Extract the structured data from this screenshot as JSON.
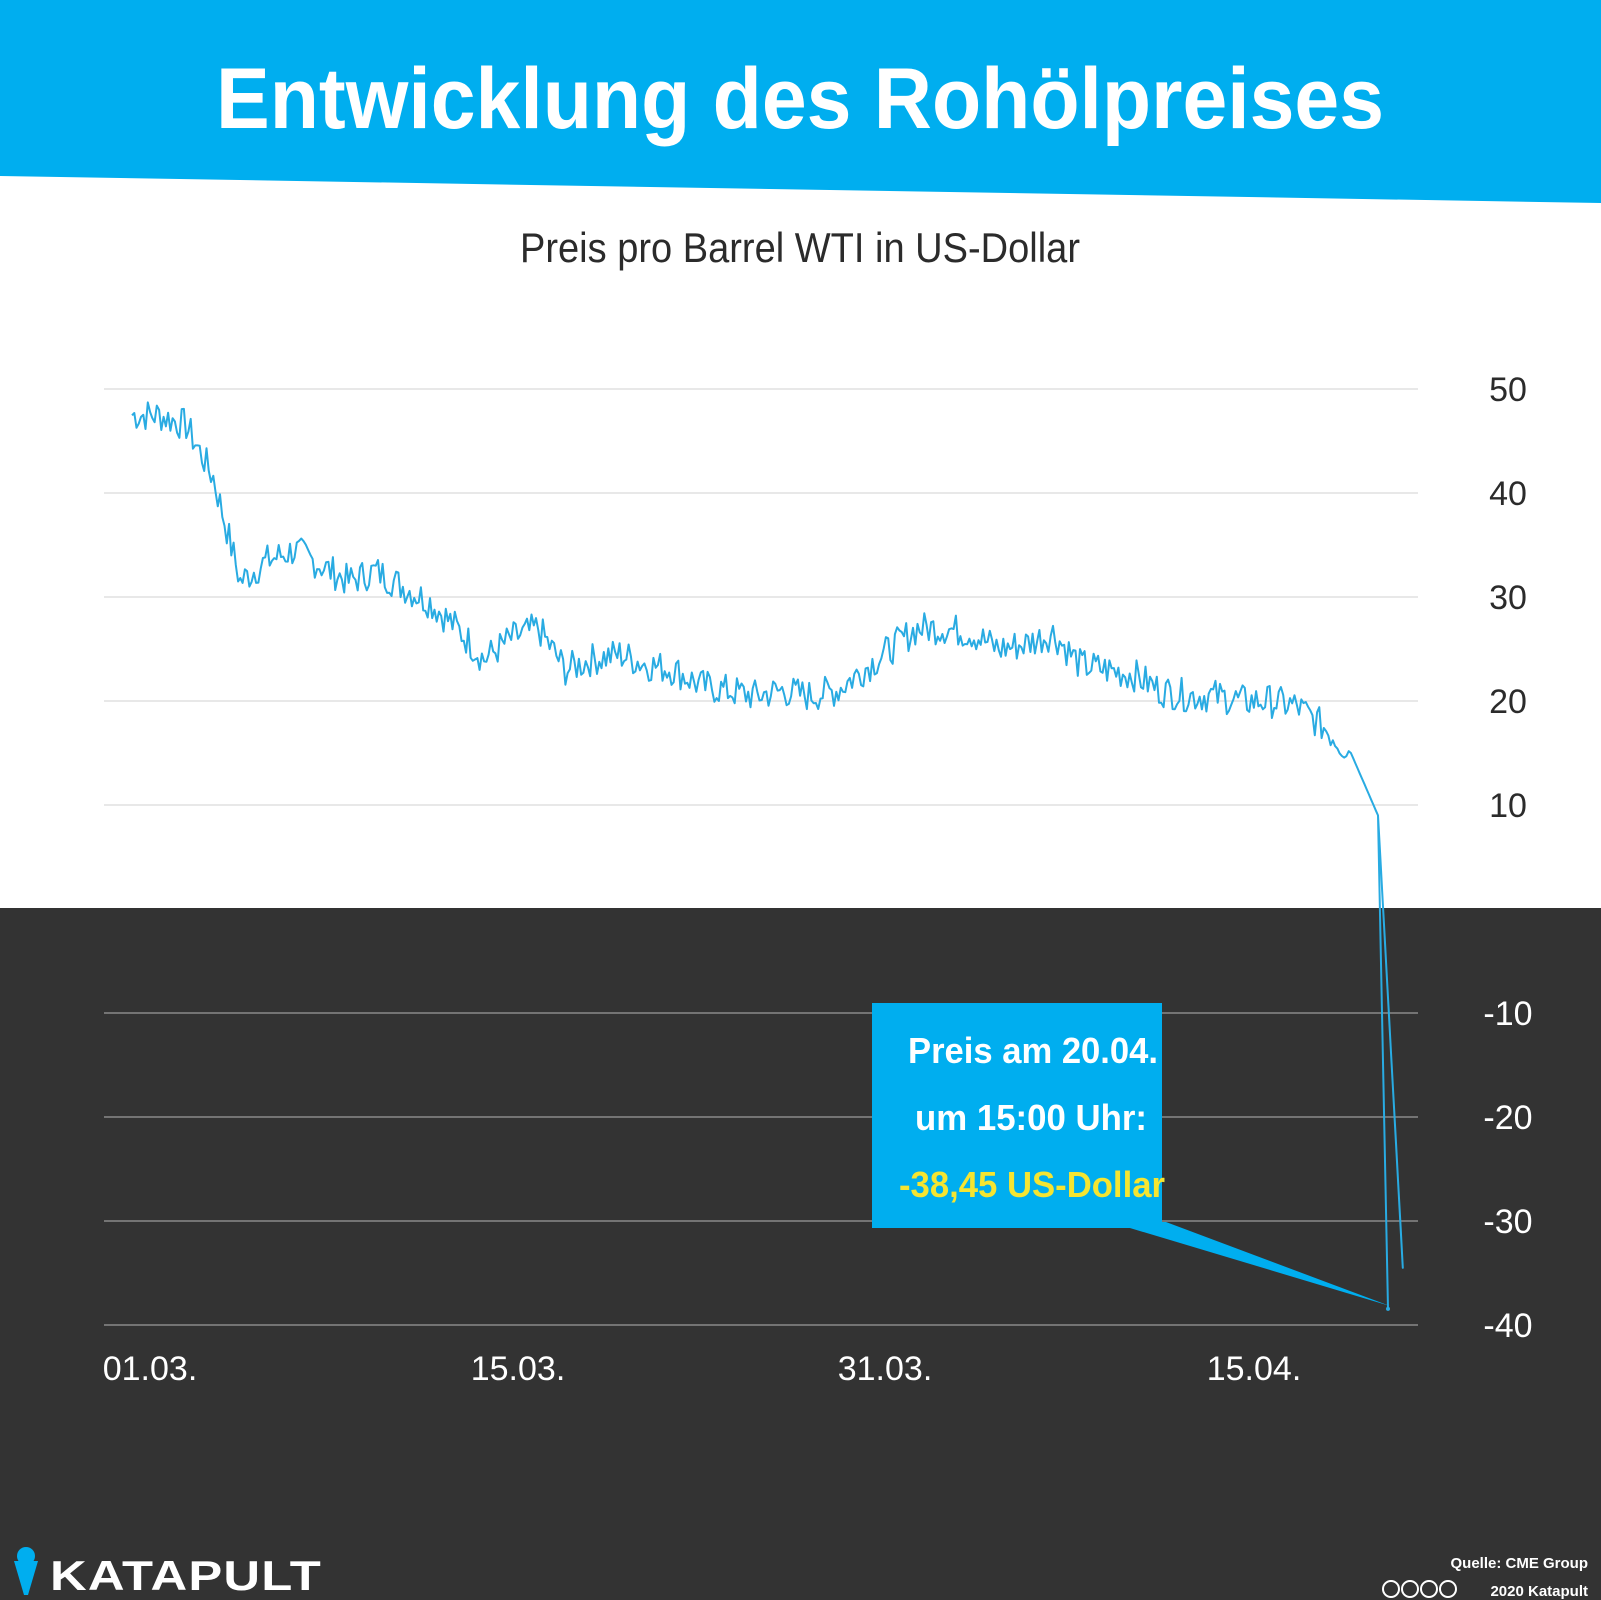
{
  "header": {
    "title": "Entwicklung des Rohölpreises",
    "background_color": "#00aeef"
  },
  "chart_data": {
    "type": "line",
    "title": "Entwicklung des Rohölpreises",
    "subtitle": "Preis pro Barrel WTI in US-Dollar",
    "xlabel": "",
    "ylabel": "",
    "x_tick_labels": [
      "01.03.",
      "15.03.",
      "31.03.",
      "15.04."
    ],
    "y_ticks": [
      50,
      40,
      30,
      20,
      10,
      -10,
      -20,
      -30,
      -40
    ],
    "ylim": [
      -40,
      50
    ],
    "x_range": [
      "01.03.",
      "20.04."
    ],
    "grid": true,
    "negative_region_color": "#333333",
    "line_color": "#29abe2",
    "series": [
      {
        "name": "",
        "x": [
          "01.03.",
          "03.03.",
          "05.03.",
          "07.03.",
          "08.03.",
          "09.03.",
          "10.03.",
          "11.03.",
          "12.03.",
          "13.03.",
          "15.03.",
          "16.03.",
          "17.03.",
          "18.03.",
          "19.03.",
          "20.03.",
          "21.03.",
          "22.03.",
          "23.03.",
          "24.03.",
          "25.03.",
          "26.03.",
          "27.03.",
          "28.03.",
          "29.03.",
          "30.03.",
          "31.03.",
          "01.04.",
          "02.04.",
          "03.04.",
          "04.04.",
          "05.04.",
          "06.04.",
          "07.04.",
          "08.04.",
          "09.04.",
          "10.04.",
          "11.04.",
          "12.04.",
          "13.04.",
          "14.04.",
          "15.04.",
          "16.04.",
          "17.04.",
          "18.04.",
          "19.04.",
          "20.04.",
          "20.04. 15:00"
        ],
        "values": [
          47.5,
          47.5,
          46.5,
          41.5,
          31.5,
          33.5,
          34.5,
          33,
          31.5,
          32.5,
          31,
          29.5,
          27,
          24,
          26,
          27,
          23,
          24,
          24.5,
          23.5,
          23,
          21.5,
          21,
          20.5,
          21,
          20.5,
          21,
          23,
          25,
          27,
          27,
          26.5,
          25,
          25.5,
          26.5,
          23.5,
          23,
          22.5,
          21,
          20.5,
          20.5,
          20,
          20,
          19.5,
          17.5,
          15,
          9,
          -38.45
        ]
      }
    ],
    "annotation": {
      "line1": "Preis am 20.04.",
      "line2": "um 15:00 Uhr:",
      "value": "-38,45 US-Dollar",
      "box_color": "#00aeef",
      "value_color": "#f5e531"
    }
  },
  "footer": {
    "brand": "KATAPULT",
    "source": "Quelle: CME Group",
    "copyright": "2020 Katapult"
  }
}
